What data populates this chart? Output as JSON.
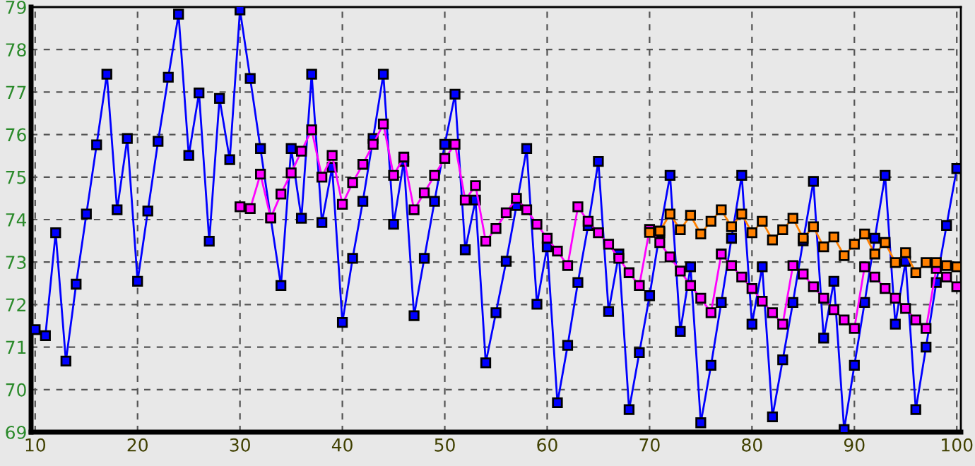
{
  "chart_data": {
    "type": "line",
    "marker": "square",
    "line_style": "solid",
    "grid": true,
    "xlim": [
      9.6,
      100.4
    ],
    "xticks": [
      10,
      20,
      30,
      40,
      50,
      60,
      70,
      80,
      90,
      100
    ],
    "ylim": [
      69,
      79
    ],
    "yticks": [
      69,
      70,
      71,
      72,
      73,
      74,
      75,
      76,
      77,
      78,
      79
    ],
    "series": [
      {
        "color": "#0000ff",
        "x": [
          10,
          11,
          12,
          13,
          14,
          15,
          16,
          17,
          18,
          19,
          20,
          21,
          22,
          23,
          24,
          25,
          26,
          27,
          28,
          29,
          30,
          31,
          32,
          33,
          34,
          35,
          36,
          37,
          38,
          39,
          40,
          41,
          42,
          43,
          44,
          45,
          46,
          47,
          48,
          49,
          50,
          51,
          52,
          53,
          54,
          55,
          56,
          57,
          58,
          59,
          60,
          61,
          62,
          63,
          64,
          65,
          66,
          67,
          68,
          69,
          70,
          71,
          72,
          73,
          74,
          75,
          76,
          77,
          78,
          79,
          80,
          81,
          82,
          83,
          84,
          85,
          86,
          87,
          88,
          89,
          90,
          91,
          92,
          93,
          94,
          95,
          96,
          97,
          98,
          99,
          100
        ],
        "values": [
          71.41,
          71.27,
          73.69,
          70.67,
          72.48,
          74.13,
          75.76,
          77.42,
          74.23,
          75.91,
          72.55,
          74.2,
          75.84,
          77.35,
          78.83,
          75.51,
          76.98,
          73.49,
          76.85,
          75.41,
          78.93,
          77.32,
          75.67,
          74.04,
          72.45,
          75.67,
          74.03,
          77.42,
          73.93,
          75.23,
          71.58,
          73.09,
          74.43,
          75.91,
          77.42,
          73.89,
          75.37,
          71.74,
          73.09,
          74.43,
          75.77,
          76.95,
          73.29,
          74.46,
          70.63,
          71.81,
          73.02,
          74.33,
          75.67,
          72.01,
          73.36,
          69.69,
          71.04,
          72.52,
          73.86,
          75.37,
          71.84,
          73.19,
          69.53,
          70.87,
          72.21,
          73.7,
          75.04,
          71.37,
          72.89,
          69.22,
          70.57,
          72.05,
          73.56,
          75.04,
          71.54,
          72.89,
          69.36,
          70.7,
          72.05,
          73.5,
          74.9,
          71.21,
          72.55,
          69.06,
          70.57,
          72.05,
          73.56,
          75.04,
          71.54,
          73.02,
          69.53,
          71.0,
          72.52,
          73.86,
          75.2
        ]
      },
      {
        "color": "#ff00ff",
        "x": [
          30,
          31,
          32,
          33,
          34,
          35,
          36,
          37,
          38,
          39,
          40,
          41,
          42,
          43,
          44,
          45,
          46,
          47,
          48,
          49,
          50,
          51,
          52,
          53,
          54,
          55,
          56,
          57,
          58,
          59,
          60,
          61,
          62,
          63,
          64,
          65,
          66,
          67,
          68,
          69,
          70,
          71,
          72,
          73,
          74,
          75,
          76,
          77,
          78,
          79,
          80,
          81,
          82,
          83,
          84,
          85,
          86,
          87,
          88,
          89,
          90,
          91,
          92,
          93,
          94,
          95,
          96,
          97,
          98,
          99,
          100
        ],
        "values": [
          74.3,
          74.26,
          75.07,
          74.04,
          74.6,
          75.1,
          75.61,
          76.11,
          75.0,
          75.51,
          74.36,
          74.87,
          75.3,
          75.77,
          76.25,
          75.04,
          75.47,
          74.23,
          74.63,
          75.04,
          75.44,
          75.77,
          74.46,
          74.8,
          73.49,
          73.79,
          74.16,
          74.5,
          74.23,
          73.89,
          73.56,
          73.26,
          72.92,
          74.3,
          73.96,
          73.69,
          73.42,
          73.09,
          72.75,
          72.45,
          73.77,
          73.46,
          73.12,
          72.79,
          72.45,
          72.15,
          71.81,
          73.19,
          72.92,
          72.65,
          72.38,
          72.08,
          71.81,
          71.54,
          72.92,
          72.72,
          72.42,
          72.15,
          71.88,
          71.64,
          71.44,
          72.89,
          72.65,
          72.38,
          72.15,
          71.91,
          71.64,
          71.44,
          72.85,
          72.65,
          72.42
        ]
      },
      {
        "color": "#ff8000",
        "x": [
          70,
          71,
          72,
          73,
          74,
          75,
          76,
          77,
          78,
          79,
          80,
          81,
          82,
          83,
          84,
          85,
          86,
          87,
          88,
          89,
          90,
          91,
          92,
          93,
          94,
          95,
          96,
          97,
          98,
          99,
          100
        ],
        "values": [
          73.7,
          73.73,
          74.13,
          73.76,
          74.1,
          73.66,
          73.96,
          74.23,
          73.83,
          74.13,
          73.69,
          73.96,
          73.52,
          73.76,
          74.03,
          73.56,
          73.83,
          73.36,
          73.59,
          73.15,
          73.42,
          73.66,
          73.19,
          73.46,
          72.99,
          73.22,
          72.75,
          72.99,
          72.99,
          72.92,
          72.89
        ]
      }
    ]
  }
}
